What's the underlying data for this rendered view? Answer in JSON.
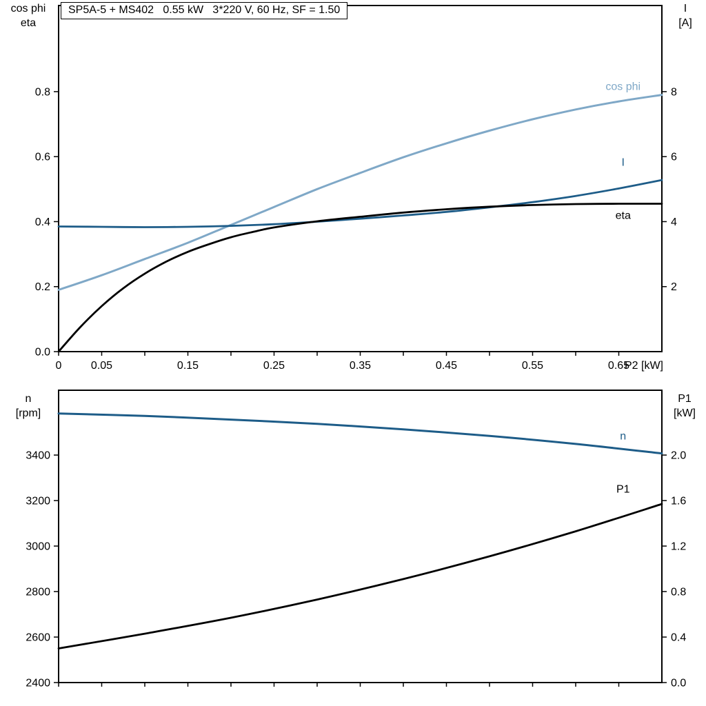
{
  "colors": {
    "light_blue": "#7fa8c7",
    "dark_blue": "#1d5c88",
    "black": "#000000"
  },
  "chart_data": [
    {
      "type": "line",
      "name": "motor-electrical-curves",
      "title": "SP5A-5 + MS402   0.55 kW   3*220 V, 60 Hz, SF = 1.50",
      "corner_left": [
        "cos phi",
        "eta"
      ],
      "corner_right": [
        "I",
        "[A]"
      ],
      "x_axis_label": "P2 [kW]",
      "x_range": [
        0,
        0.7
      ],
      "left_range": [
        0,
        1.065
      ],
      "right_range": [
        0,
        10.65
      ],
      "grid": false,
      "x_ticks": [
        0,
        0.05,
        0.1,
        0.15,
        0.2,
        0.25,
        0.3,
        0.35,
        0.4,
        0.45,
        0.5,
        0.55,
        0.6,
        0.65
      ],
      "x_tick_labels": [
        {
          "v": 0,
          "t": "0"
        },
        {
          "v": 0.05,
          "t": "0.05"
        },
        {
          "v": 0.15,
          "t": "0.15"
        },
        {
          "v": 0.25,
          "t": "0.25"
        },
        {
          "v": 0.35,
          "t": "0.35"
        },
        {
          "v": 0.45,
          "t": "0.45"
        },
        {
          "v": 0.55,
          "t": "0.55"
        },
        {
          "v": 0.65,
          "t": "0.65"
        }
      ],
      "left_ticks": [
        {
          "v": 0,
          "t": "0.0"
        },
        {
          "v": 0.2,
          "t": "0.2"
        },
        {
          "v": 0.4,
          "t": "0.4"
        },
        {
          "v": 0.6,
          "t": "0.6"
        },
        {
          "v": 0.8,
          "t": "0.8"
        }
      ],
      "right_ticks": [
        {
          "v": 2,
          "t": "2"
        },
        {
          "v": 4,
          "t": "4"
        },
        {
          "v": 6,
          "t": "6"
        },
        {
          "v": 8,
          "t": "8"
        }
      ],
      "series": [
        {
          "name": "cos phi",
          "label": "cos phi",
          "color": "light_blue",
          "axis": "left",
          "width": 3,
          "label_at": [
            0.655,
            0.805
          ],
          "points": [
            [
              0,
              0.19
            ],
            [
              0.05,
              0.235
            ],
            [
              0.1,
              0.285
            ],
            [
              0.15,
              0.335
            ],
            [
              0.2,
              0.39
            ],
            [
              0.25,
              0.445
            ],
            [
              0.3,
              0.5
            ],
            [
              0.35,
              0.55
            ],
            [
              0.4,
              0.598
            ],
            [
              0.45,
              0.641
            ],
            [
              0.5,
              0.68
            ],
            [
              0.55,
              0.715
            ],
            [
              0.6,
              0.745
            ],
            [
              0.65,
              0.77
            ],
            [
              0.7,
              0.79
            ]
          ]
        },
        {
          "name": "I",
          "label": "I",
          "color": "dark_blue",
          "axis": "right",
          "width": 2.8,
          "label_at": [
            0.655,
            5.72
          ],
          "points": [
            [
              0,
              3.85
            ],
            [
              0.05,
              3.84
            ],
            [
              0.1,
              3.83
            ],
            [
              0.15,
              3.84
            ],
            [
              0.2,
              3.87
            ],
            [
              0.25,
              3.92
            ],
            [
              0.3,
              4.0
            ],
            [
              0.35,
              4.09
            ],
            [
              0.4,
              4.19
            ],
            [
              0.45,
              4.3
            ],
            [
              0.5,
              4.44
            ],
            [
              0.55,
              4.6
            ],
            [
              0.6,
              4.79
            ],
            [
              0.65,
              5.02
            ],
            [
              0.7,
              5.28
            ]
          ]
        },
        {
          "name": "eta",
          "label": "eta",
          "color": "black",
          "axis": "left",
          "width": 2.8,
          "label_at": [
            0.655,
            0.408
          ],
          "points": [
            [
              0,
              0
            ],
            [
              0.025,
              0.075
            ],
            [
              0.05,
              0.14
            ],
            [
              0.075,
              0.195
            ],
            [
              0.1,
              0.24
            ],
            [
              0.125,
              0.277
            ],
            [
              0.15,
              0.307
            ],
            [
              0.175,
              0.331
            ],
            [
              0.2,
              0.352
            ],
            [
              0.225,
              0.368
            ],
            [
              0.25,
              0.382
            ],
            [
              0.3,
              0.401
            ],
            [
              0.35,
              0.415
            ],
            [
              0.4,
              0.428
            ],
            [
              0.45,
              0.438
            ],
            [
              0.5,
              0.446
            ],
            [
              0.55,
              0.451
            ],
            [
              0.6,
              0.454
            ],
            [
              0.65,
              0.455
            ],
            [
              0.7,
              0.455
            ]
          ]
        }
      ]
    },
    {
      "type": "line",
      "name": "motor-mechanical-curves",
      "title": "",
      "corner_left": [
        "n",
        "[rpm]"
      ],
      "corner_right": [
        "P1",
        "[kW]"
      ],
      "x_axis_label": "",
      "x_range": [
        0,
        0.7
      ],
      "left_range": [
        2400,
        3685
      ],
      "right_range": [
        0,
        2.57
      ],
      "grid": false,
      "x_ticks": [
        0,
        0.05,
        0.1,
        0.15,
        0.2,
        0.25,
        0.3,
        0.35,
        0.4,
        0.45,
        0.5,
        0.55,
        0.6,
        0.65
      ],
      "x_tick_labels": [],
      "left_ticks": [
        {
          "v": 2400,
          "t": "2400"
        },
        {
          "v": 2600,
          "t": "2600"
        },
        {
          "v": 2800,
          "t": "2800"
        },
        {
          "v": 3000,
          "t": "3000"
        },
        {
          "v": 3200,
          "t": "3200"
        },
        {
          "v": 3400,
          "t": "3400"
        }
      ],
      "right_ticks": [
        {
          "v": 0,
          "t": "0.0"
        },
        {
          "v": 0.4,
          "t": "0.4"
        },
        {
          "v": 0.8,
          "t": "0.8"
        },
        {
          "v": 1.2,
          "t": "1.2"
        },
        {
          "v": 1.6,
          "t": "1.6"
        },
        {
          "v": 2.0,
          "t": "2.0"
        }
      ],
      "series": [
        {
          "name": "n",
          "label": "n",
          "color": "dark_blue",
          "axis": "left",
          "width": 3,
          "label_at": [
            0.655,
            3468
          ],
          "points": [
            [
              0,
              3583
            ],
            [
              0.1,
              3572
            ],
            [
              0.2,
              3556
            ],
            [
              0.3,
              3537
            ],
            [
              0.4,
              3513
            ],
            [
              0.5,
              3484
            ],
            [
              0.6,
              3449
            ],
            [
              0.7,
              3407
            ]
          ]
        },
        {
          "name": "P1",
          "label": "P1",
          "color": "black",
          "axis": "right",
          "width": 2.8,
          "label_at": [
            0.655,
            1.67
          ],
          "points": [
            [
              0,
              0.3
            ],
            [
              0.1,
              0.43
            ],
            [
              0.2,
              0.57
            ],
            [
              0.3,
              0.73
            ],
            [
              0.4,
              0.91
            ],
            [
              0.5,
              1.11
            ],
            [
              0.6,
              1.33
            ],
            [
              0.7,
              1.57
            ]
          ]
        }
      ]
    }
  ]
}
